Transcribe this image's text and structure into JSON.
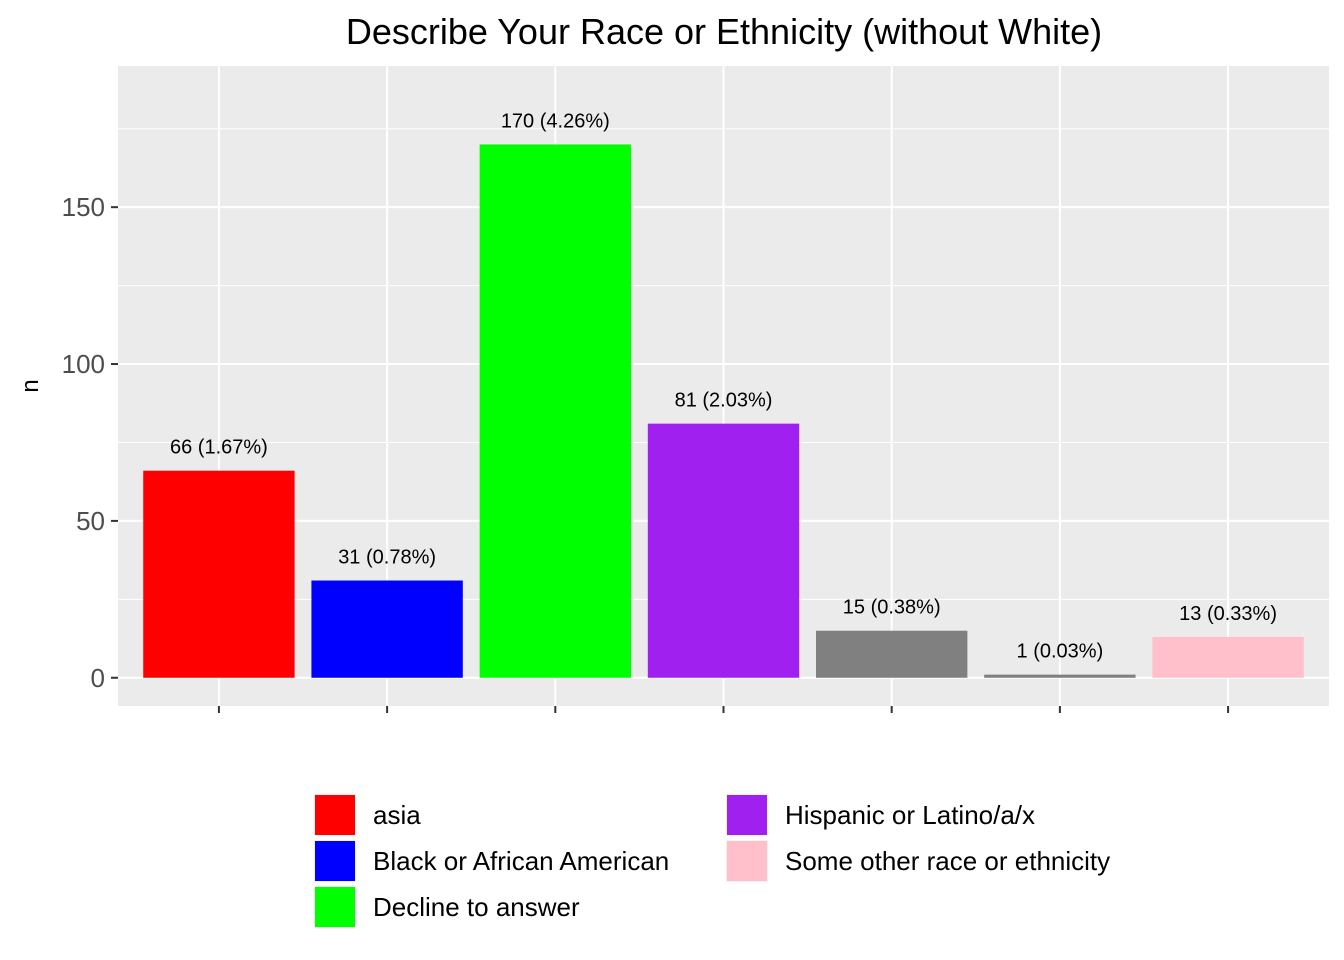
{
  "chart_data": {
    "type": "bar",
    "title": "Describe Your Race or Ethnicity (without White)",
    "xlabel": "",
    "ylabel": "n",
    "ylim": [
      -9,
      195
    ],
    "yticks": [
      0,
      50,
      100,
      150
    ],
    "grid": true,
    "legend_position": "bottom",
    "bars": [
      {
        "category": "asia",
        "value": 66,
        "label": "66 (1.67%)",
        "color": "#FF0000"
      },
      {
        "category": "Black or African American",
        "value": 31,
        "label": "31 (0.78%)",
        "color": "#0000FF"
      },
      {
        "category": "Decline to answer",
        "value": 170,
        "label": "170 (4.26%)",
        "color": "#00FF00"
      },
      {
        "category": "Hispanic or Latino/a/x",
        "value": 81,
        "label": "81 (2.03%)",
        "color": "#A020F0"
      },
      {
        "category": "",
        "value": 15,
        "label": "15 (0.38%)",
        "color": "#808080"
      },
      {
        "category": "",
        "value": 1,
        "label": "1 (0.03%)",
        "color": "#808080"
      },
      {
        "category": "Some other race or ethnicity",
        "value": 13,
        "label": "13 (0.33%)",
        "color": "#FFC0CB"
      }
    ],
    "legend": [
      {
        "label": "asia",
        "color": "#FF0000"
      },
      {
        "label": "Black or African American",
        "color": "#0000FF"
      },
      {
        "label": "Decline to answer",
        "color": "#00FF00"
      },
      {
        "label": "Hispanic or Latino/a/x",
        "color": "#A020F0"
      },
      {
        "label": "Some other race or ethnicity",
        "color": "#FFC0CB"
      }
    ]
  }
}
